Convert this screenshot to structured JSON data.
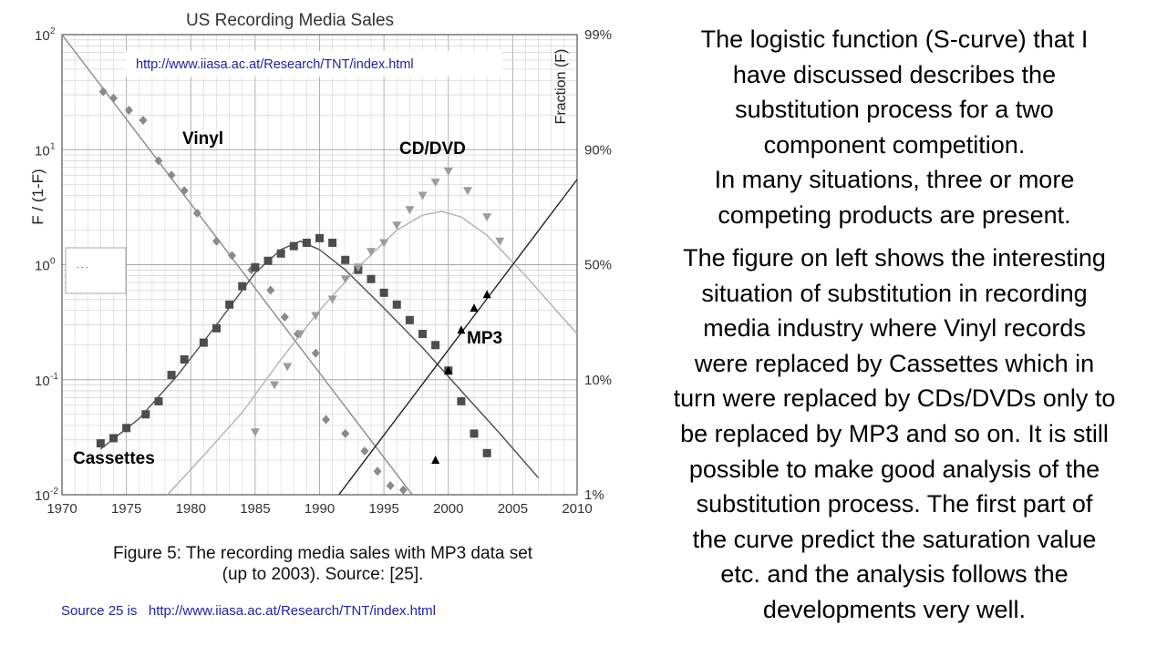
{
  "chart_data": {
    "type": "scatter",
    "title": "US Recording Media Sales",
    "url_label": "http://www.iiasa.ac.at/Research/TNT/index.html",
    "ylabel_left": "F / (1-F)",
    "ylabel_right": "Fraction (F)",
    "xlim": [
      1970,
      2010
    ],
    "ylim_log": [
      0.01,
      100
    ],
    "x_ticks": [
      "1970",
      "1975",
      "1980",
      "1985",
      "1990",
      "1995",
      "2000",
      "2005",
      "2010"
    ],
    "y_ticks_base": "10",
    "y_ticks_exp": [
      "-2",
      "-1",
      "0",
      "1",
      "2"
    ],
    "y_ticks_right": [
      "1%",
      "10%",
      "50%",
      "90%",
      "99%"
    ],
    "legend_dots": ".\n.\n.",
    "series": [
      {
        "name": "Vinyl",
        "marker": "diamond",
        "x": [
          1973.2,
          1974.0,
          1975.2,
          1976.3,
          1977.5,
          1978.5,
          1979.5,
          1980.5,
          1982.0,
          1983.2,
          1984.7,
          1986.2,
          1987.3,
          1988.3,
          1989.7,
          1990.5,
          1992.0,
          1993.5,
          1994.5,
          1995.5,
          1996.5
        ],
        "y": [
          32,
          28,
          22,
          18,
          8,
          6,
          4.4,
          2.8,
          1.6,
          1.2,
          0.9,
          0.6,
          0.35,
          0.25,
          0.17,
          0.045,
          0.034,
          0.024,
          0.016,
          0.012,
          0.011
        ]
      },
      {
        "name": "Cassettes",
        "marker": "square",
        "x": [
          1973.0,
          1974.0,
          1975.0,
          1976.5,
          1977.5,
          1978.5,
          1979.5,
          1981.0,
          1982.0,
          1983.0,
          1984.0,
          1985.0,
          1986.0,
          1987.0,
          1988.0,
          1989.0,
          1990.0,
          1991.0,
          1992.0,
          1993.0,
          1994.0,
          1995.0,
          1996.0,
          1997.0,
          1998.0,
          1999.0,
          2000.0,
          2001.0,
          2002.0,
          2003.0
        ],
        "y": [
          0.028,
          0.031,
          0.038,
          0.05,
          0.065,
          0.11,
          0.15,
          0.21,
          0.28,
          0.45,
          0.65,
          0.95,
          1.08,
          1.25,
          1.45,
          1.55,
          1.7,
          1.55,
          1.1,
          0.9,
          0.75,
          0.57,
          0.45,
          0.33,
          0.25,
          0.2,
          0.12,
          0.065,
          0.034,
          0.023
        ]
      },
      {
        "name": "CD/DVD",
        "marker": "triangle-down",
        "x": [
          1985.0,
          1986.5,
          1987.5,
          1988.5,
          1989.7,
          1991.0,
          1992.0,
          1993.0,
          1994.0,
          1995.0,
          1996.0,
          1997.0,
          1998.0,
          1999.0,
          2000.0,
          2001.5,
          2003.0,
          2004.0
        ],
        "y": [
          0.035,
          0.09,
          0.13,
          0.25,
          0.36,
          0.5,
          0.75,
          0.95,
          1.3,
          1.55,
          2.2,
          3.0,
          4.0,
          5.2,
          6.5,
          4.4,
          2.6,
          1.6
        ]
      },
      {
        "name": "MP3",
        "marker": "triangle-up",
        "x": [
          1999.0,
          2000.0,
          2001.0,
          2002.0,
          2003.0
        ],
        "y": [
          0.02,
          0.12,
          0.27,
          0.42,
          0.55
        ]
      }
    ],
    "fits": [
      {
        "name": "Vinyl fit",
        "x": [
          1970.0,
          1997.2
        ],
        "y": [
          100,
          0.01
        ]
      },
      {
        "name": "Cassettes fit",
        "x": [
          1973.0,
          1976.0,
          1979.0,
          1982.0,
          1985.0,
          1987.0,
          1988.5,
          1990.0,
          1992.0,
          1995.0,
          1998.0,
          2001.0,
          2004.0,
          2007.0
        ],
        "y": [
          0.025,
          0.046,
          0.11,
          0.3,
          0.85,
          1.35,
          1.6,
          1.35,
          0.9,
          0.42,
          0.19,
          0.08,
          0.034,
          0.014
        ]
      },
      {
        "name": "CD/DVD fit",
        "x": [
          1978.2,
          1981.0,
          1984.0,
          1987.0,
          1990.0,
          1993.0,
          1996.0,
          1998.0,
          1999.5,
          2001.0,
          2003.0,
          2006.0,
          2010.0
        ],
        "y": [
          0.01,
          0.022,
          0.052,
          0.15,
          0.4,
          0.95,
          2.0,
          2.7,
          2.9,
          2.6,
          1.8,
          0.8,
          0.25
        ]
      },
      {
        "name": "MP3 fit",
        "x": [
          1991.5,
          2010.0
        ],
        "y": [
          0.01,
          5.5
        ]
      }
    ],
    "annotations": [
      "Vinyl",
      "CD/DVD",
      "MP3",
      "Cassettes"
    ]
  },
  "caption": {
    "line1": "Figure 5: The recording media sales with MP3 data set",
    "line2": "(up to 2003). Source: [25]."
  },
  "source_note": "Source 25 is   http://www.iiasa.ac.at/Research/TNT/index.html",
  "right_text": {
    "paragraph1": [
      "The logistic function (S-curve) that I",
      "have discussed describes the",
      "substitution process for a two",
      "component competition.",
      "In many situations, three or more",
      "competing products are present."
    ],
    "paragraph2": [
      "The figure on left shows the interesting",
      "situation of substitution in recording",
      "media industry where Vinyl records",
      "were replaced by Cassettes which in",
      "turn were replaced by CDs/DVDs only to",
      "be replaced by MP3 and so on.  It is still",
      "possible to make good analysis of the",
      "substitution process.  The first part of",
      "the curve predict the saturation value",
      "etc. and the analysis follows the",
      "developments  very well."
    ]
  },
  "colors": {
    "vinyl": "#8a8a8a",
    "cassettes": "#4d4d4d",
    "cd": "#9c9c9c",
    "mp3": "#000000",
    "grid": "#bdbdbd",
    "url": "#1f1fa8"
  }
}
